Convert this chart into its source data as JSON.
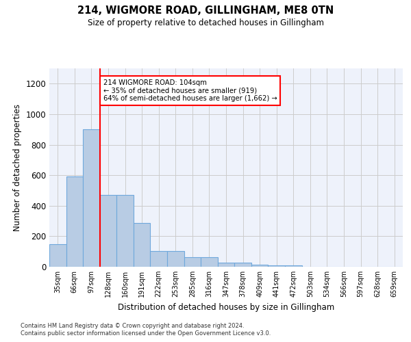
{
  "title": "214, WIGMORE ROAD, GILLINGHAM, ME8 0TN",
  "subtitle": "Size of property relative to detached houses in Gillingham",
  "xlabel": "Distribution of detached houses by size in Gillingham",
  "ylabel": "Number of detached properties",
  "bins": [
    "35sqm",
    "66sqm",
    "97sqm",
    "128sqm",
    "160sqm",
    "191sqm",
    "222sqm",
    "253sqm",
    "285sqm",
    "316sqm",
    "347sqm",
    "378sqm",
    "409sqm",
    "441sqm",
    "472sqm",
    "503sqm",
    "534sqm",
    "566sqm",
    "597sqm",
    "628sqm",
    "659sqm"
  ],
  "values": [
    150,
    590,
    900,
    470,
    470,
    285,
    105,
    105,
    65,
    65,
    28,
    25,
    15,
    10,
    10,
    0,
    0,
    0,
    0,
    0,
    0
  ],
  "bar_color": "#b8cce4",
  "bar_edgecolor": "#6fa8dc",
  "red_line_bin_index": 2,
  "annotation_line1": "214 WIGMORE ROAD: 104sqm",
  "annotation_line2": "← 35% of detached houses are smaller (919)",
  "annotation_line3": "64% of semi-detached houses are larger (1,662) →",
  "annotation_box_color": "white",
  "annotation_box_edgecolor": "red",
  "ylim": [
    0,
    1300
  ],
  "yticks": [
    0,
    200,
    400,
    600,
    800,
    1000,
    1200
  ],
  "footer_line1": "Contains HM Land Registry data © Crown copyright and database right 2024.",
  "footer_line2": "Contains public sector information licensed under the Open Government Licence v3.0.",
  "background_color": "#eef2fb",
  "grid_color": "#cccccc"
}
